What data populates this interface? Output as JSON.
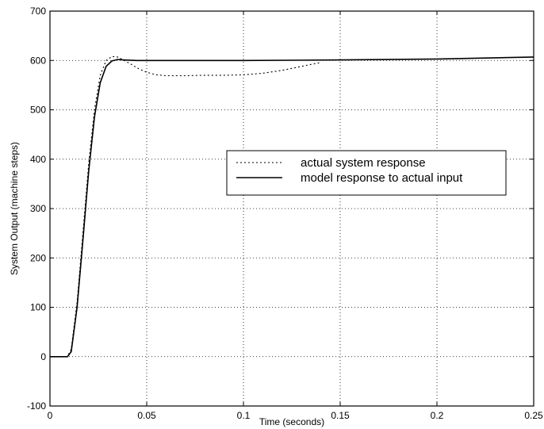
{
  "chart_data": {
    "type": "line",
    "title": "",
    "xlabel": "Time (seconds)",
    "ylabel": "System Output (machine steps)",
    "xlim": [
      0,
      0.25
    ],
    "ylim": [
      -100,
      700
    ],
    "x_ticks": [
      0,
      0.05,
      0.1,
      0.15,
      0.2,
      0.25
    ],
    "x_tick_labels": [
      "0",
      "0.05",
      "0.1",
      "0.15",
      "0.2",
      "0.25"
    ],
    "y_ticks": [
      -100,
      0,
      100,
      200,
      300,
      400,
      500,
      600,
      700
    ],
    "y_tick_labels": [
      "-100",
      "0",
      "100",
      "200",
      "300",
      "400",
      "500",
      "600",
      "700"
    ],
    "grid": true,
    "legend_position": "middle-right",
    "series": [
      {
        "name": "actual system response",
        "style": "dotted",
        "color": "#000000",
        "x": [
          0,
          0.009,
          0.011,
          0.014,
          0.017,
          0.02,
          0.023,
          0.026,
          0.029,
          0.032,
          0.035,
          0.038,
          0.042,
          0.046,
          0.05,
          0.055,
          0.06,
          0.07,
          0.08,
          0.09,
          0.1,
          0.11,
          0.12,
          0.13,
          0.14
        ],
        "y": [
          0,
          0,
          15,
          110,
          250,
          390,
          500,
          570,
          600,
          608,
          607,
          601,
          592,
          583,
          576,
          571,
          569,
          569,
          570,
          570,
          571,
          574,
          580,
          588,
          596
        ]
      },
      {
        "name": "model response to actual input",
        "style": "solid",
        "color": "#000000",
        "x": [
          0,
          0.009,
          0.011,
          0.014,
          0.017,
          0.02,
          0.023,
          0.026,
          0.029,
          0.032,
          0.035,
          0.038,
          0.045,
          0.06,
          0.1,
          0.15,
          0.2,
          0.25
        ],
        "y": [
          0,
          0,
          10,
          100,
          235,
          375,
          485,
          555,
          588,
          599,
          602,
          601,
          600,
          600,
          600,
          601,
          603,
          607
        ]
      }
    ]
  }
}
